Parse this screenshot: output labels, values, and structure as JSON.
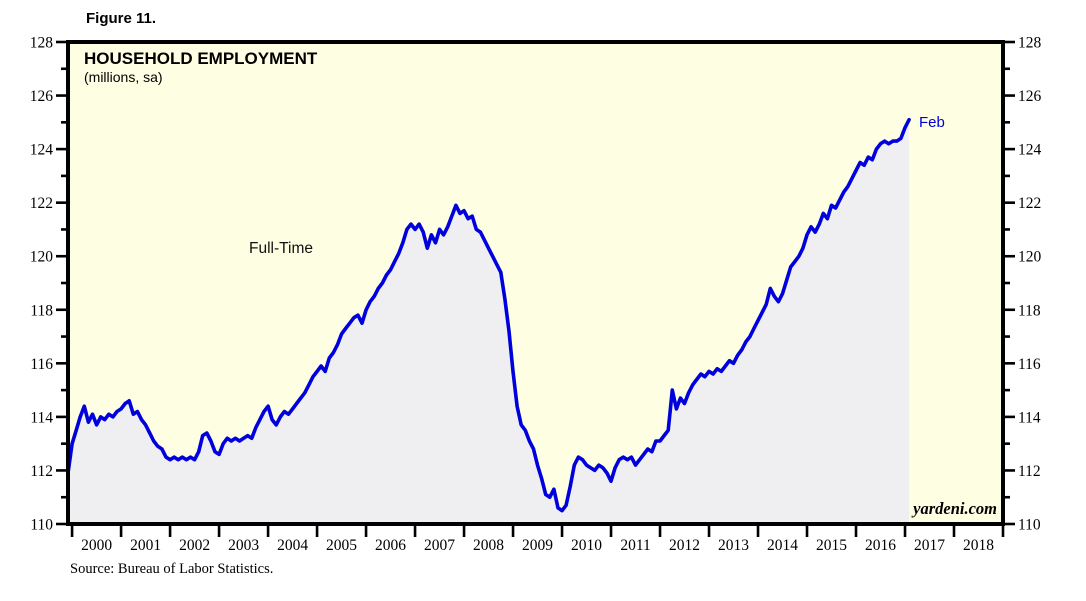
{
  "figure_label": "Figure 11.",
  "chart": {
    "title": "HOUSEHOLD EMPLOYMENT",
    "subtitle": "(millions, sa)",
    "series_label": "Full-Time",
    "end_label": "Feb",
    "watermark": "yardeni.com",
    "colors": {
      "line": "#0000dd",
      "area_fill": "#efeff1",
      "plot_background": "#fefee2",
      "frame": "#000000",
      "end_label_color": "#0000dd"
    }
  },
  "source": "Source: Bureau of Labor Statistics.",
  "chart_data": {
    "type": "line",
    "title": "HOUSEHOLD EMPLOYMENT",
    "units": "millions, sa",
    "series": [
      {
        "name": "Full-Time",
        "frequency": "monthly",
        "start": "1999-12",
        "end": "2017-02",
        "end_point": {
          "label": "Feb",
          "value": 125.1
        },
        "values": [
          111.9,
          113.0,
          113.5,
          114.0,
          114.4,
          113.8,
          114.1,
          113.7,
          114.0,
          113.9,
          114.1,
          114.0,
          114.2,
          114.3,
          114.5,
          114.6,
          114.1,
          114.2,
          113.9,
          113.7,
          113.4,
          113.1,
          112.9,
          112.8,
          112.5,
          112.4,
          112.5,
          112.4,
          112.5,
          112.4,
          112.5,
          112.4,
          112.7,
          113.3,
          113.4,
          113.1,
          112.7,
          112.6,
          113.0,
          113.2,
          113.1,
          113.2,
          113.1,
          113.2,
          113.3,
          113.2,
          113.6,
          113.9,
          114.2,
          114.4,
          113.9,
          113.7,
          114.0,
          114.2,
          114.1,
          114.3,
          114.5,
          114.7,
          114.9,
          115.2,
          115.5,
          115.7,
          115.9,
          115.7,
          116.2,
          116.4,
          116.7,
          117.1,
          117.3,
          117.5,
          117.7,
          117.8,
          117.5,
          118.0,
          118.3,
          118.5,
          118.8,
          119.0,
          119.3,
          119.5,
          119.8,
          120.1,
          120.5,
          121.0,
          121.2,
          121.0,
          121.2,
          120.9,
          120.3,
          120.8,
          120.5,
          121.0,
          120.8,
          121.1,
          121.5,
          121.9,
          121.6,
          121.7,
          121.4,
          121.5,
          121.0,
          120.9,
          120.6,
          120.3,
          120.0,
          119.7,
          119.4,
          118.4,
          117.2,
          115.7,
          114.4,
          113.7,
          113.5,
          113.1,
          112.8,
          112.2,
          111.7,
          111.1,
          111.0,
          111.3,
          110.6,
          110.5,
          110.7,
          111.4,
          112.2,
          112.5,
          112.4,
          112.2,
          112.1,
          112.0,
          112.2,
          112.1,
          111.9,
          111.6,
          112.1,
          112.4,
          112.5,
          112.4,
          112.5,
          112.2,
          112.4,
          112.6,
          112.8,
          112.7,
          113.1,
          113.1,
          113.3,
          113.5,
          115.0,
          114.3,
          114.7,
          114.5,
          114.9,
          115.2,
          115.4,
          115.6,
          115.5,
          115.7,
          115.6,
          115.8,
          115.7,
          115.9,
          116.1,
          116.0,
          116.3,
          116.5,
          116.8,
          117.0,
          117.3,
          117.6,
          117.9,
          118.2,
          118.8,
          118.5,
          118.3,
          118.6,
          119.1,
          119.6,
          119.8,
          120.0,
          120.3,
          120.8,
          121.1,
          120.9,
          121.2,
          121.6,
          121.4,
          121.9,
          121.8,
          122.1,
          122.4,
          122.6,
          122.9,
          123.2,
          123.5,
          123.4,
          123.7,
          123.6,
          124.0,
          124.2,
          124.3,
          124.2,
          124.3,
          124.3,
          124.4,
          124.8,
          125.1
        ]
      }
    ],
    "x_tick_years": [
      2000,
      2001,
      2002,
      2003,
      2004,
      2005,
      2006,
      2007,
      2008,
      2009,
      2010,
      2011,
      2012,
      2013,
      2014,
      2015,
      2016,
      2017,
      2018
    ],
    "y_ticks": [
      110,
      112,
      114,
      116,
      118,
      120,
      122,
      124,
      126,
      128
    ],
    "ylim": [
      110,
      128
    ],
    "xlim": [
      "1999-12",
      "2019-01"
    ],
    "grid": false,
    "legend": "none",
    "annotations": [
      "Full-Time",
      "Feb"
    ],
    "source": "Source: Bureau of Labor Statistics."
  }
}
